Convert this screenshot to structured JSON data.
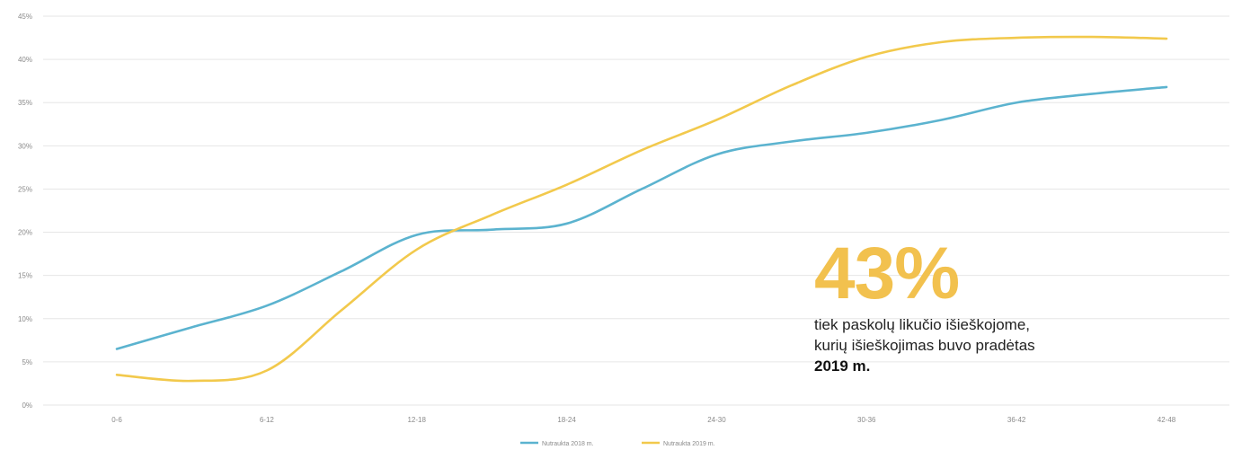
{
  "chart_data": {
    "type": "line",
    "categories": [
      "0-6",
      "6-12",
      "12-18",
      "18-24",
      "24-30",
      "30-36",
      "36-42",
      "42-48"
    ],
    "y_ticks": [
      "0%",
      "5%",
      "10%",
      "15%",
      "20%",
      "25%",
      "30%",
      "35%",
      "40%",
      "45%"
    ],
    "ylim": [
      0,
      45
    ],
    "grid": true,
    "legend_position": "bottom",
    "series": [
      {
        "name": "Nutraukta 2018 m.",
        "color": "#5bb3cf",
        "x": [
          0,
          0.5,
          1,
          1.5,
          2,
          2.5,
          3,
          3.5,
          4,
          4.5,
          5,
          5.5,
          6,
          6.5,
          7
        ],
        "values": [
          6.5,
          9.0,
          11.5,
          15.5,
          19.7,
          20.3,
          21.0,
          25.0,
          29.0,
          30.5,
          31.5,
          33.0,
          35.0,
          36.0,
          36.8
        ]
      },
      {
        "name": "Nutraukta 2019 m.",
        "color": "#f2c94c",
        "x": [
          0,
          0.5,
          1,
          1.5,
          2,
          2.5,
          3,
          3.5,
          4,
          4.5,
          5,
          5.5,
          6,
          6.5,
          7
        ],
        "values": [
          3.5,
          2.8,
          4.0,
          11.0,
          18.0,
          22.0,
          25.5,
          29.5,
          33.0,
          37.0,
          40.3,
          42.0,
          42.5,
          42.6,
          42.4
        ]
      }
    ]
  },
  "callout": {
    "big_value": "43%",
    "line1": "tiek paskolų likučio išieškojome,",
    "line2": "kurių išieškojimas buvo pradėtas",
    "line3": "2019 m."
  },
  "colors": {
    "grid": "#e6e6e6",
    "tick_text": "#8a8a8a",
    "accent": "#f2c14e"
  }
}
